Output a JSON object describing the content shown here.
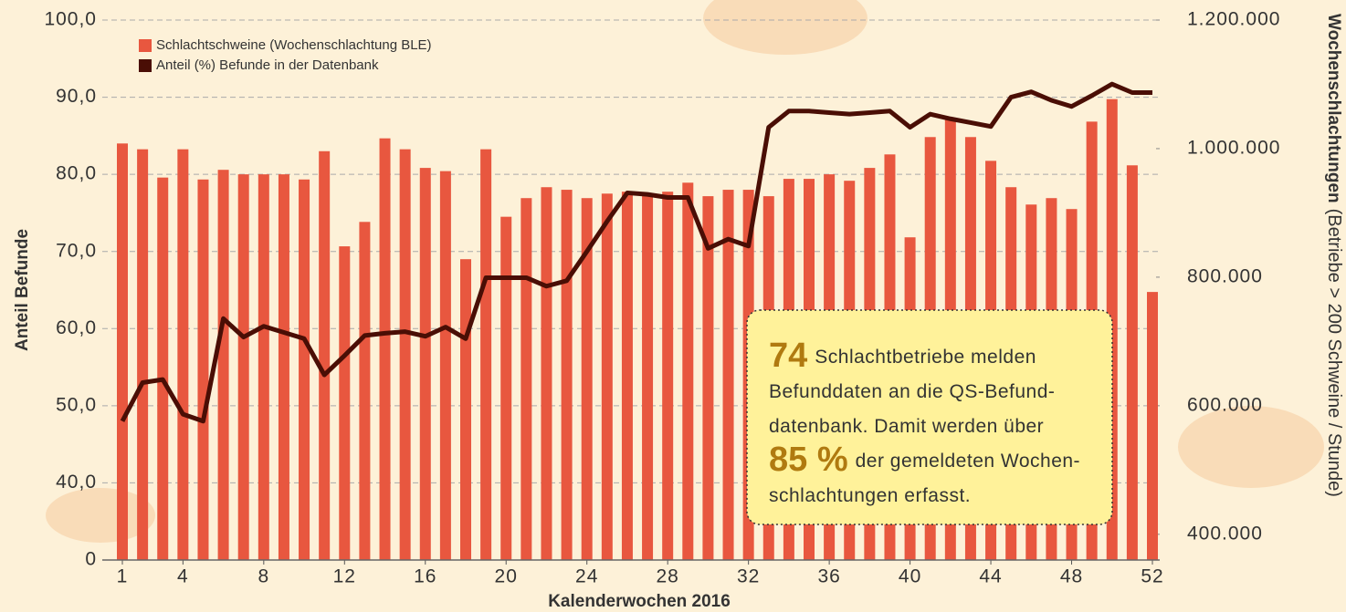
{
  "chart_data": {
    "type": "bar_line",
    "x_label": "Kalenderwochen 2016",
    "y_label": "Anteil Befunde",
    "y2_label": "Wochenschlachtungen",
    "y2_label_note": "(Betriebe > 200 Schweine / Stunde)",
    "x": [
      1,
      2,
      3,
      4,
      5,
      6,
      7,
      8,
      9,
      10,
      11,
      12,
      13,
      14,
      15,
      16,
      17,
      18,
      19,
      20,
      21,
      22,
      23,
      24,
      25,
      26,
      27,
      28,
      29,
      30,
      31,
      32,
      33,
      34,
      35,
      36,
      37,
      38,
      39,
      40,
      41,
      42,
      43,
      44,
      45,
      46,
      47,
      48,
      49,
      50,
      51,
      52
    ],
    "xlim": [
      1,
      52
    ],
    "xticks": [
      1,
      4,
      8,
      12,
      16,
      20,
      24,
      28,
      32,
      36,
      40,
      44,
      48,
      52
    ],
    "ylim": [
      30,
      100
    ],
    "y_break": true,
    "yticks": [
      0,
      {
        "value": 40,
        "label": "40,0"
      },
      {
        "value": 50,
        "label": "50,0"
      },
      {
        "value": 60,
        "label": "60,0"
      },
      {
        "value": 70,
        "label": "70,0"
      },
      {
        "value": 80,
        "label": "80,0"
      },
      {
        "value": 90,
        "label": "90,0"
      },
      {
        "value": 100,
        "label": "100,0"
      }
    ],
    "y2lim": [
      360000,
      1200000
    ],
    "y2ticks": [
      {
        "value": 400000,
        "label": "400.000"
      },
      {
        "value": 600000,
        "label": "600.000"
      },
      {
        "value": 800000,
        "label": "800.000"
      },
      {
        "value": 1000000,
        "label": "1.000.000"
      },
      {
        "value": 1200000,
        "label": "1.200.000"
      }
    ],
    "grid": true,
    "legend": "top-left",
    "series": [
      {
        "name": "Schlachtschweine (Wochenschlachtung BLE)",
        "color": "#e8573f",
        "kind": "bar",
        "axis": "y2",
        "values": [
          1008000,
          999000,
          955000,
          999000,
          952000,
          967000,
          960000,
          960000,
          960000,
          952000,
          996000,
          848000,
          886000,
          1016000,
          999000,
          970000,
          965000,
          828000,
          999000,
          894000,
          923000,
          940000,
          936000,
          923000,
          930000,
          933000,
          930000,
          933000,
          947000,
          926000,
          936000,
          936000,
          926000,
          953000,
          953000,
          960000,
          950000,
          970000,
          991000,
          862000,
          1018000,
          1045000,
          1018000,
          981000,
          940000,
          913000,
          923000,
          906000,
          1042000,
          1077000,
          974000,
          777000
        ]
      },
      {
        "name": "Anteil (%) Befunde in der Datenbank",
        "color": "#4a0e05",
        "kind": "line",
        "values": [
          48.0,
          53.0,
          53.4,
          48.9,
          48.0,
          61.3,
          58.9,
          60.3,
          59.5,
          58.7,
          54.0,
          56.5,
          59.1,
          59.4,
          59.6,
          59.0,
          60.2,
          58.7,
          66.6,
          66.6,
          66.6,
          65.5,
          66.2,
          70.0,
          73.9,
          77.6,
          77.4,
          77.0,
          77.0,
          70.4,
          71.6,
          70.7,
          86.1,
          88.2,
          88.2,
          88.0,
          87.8,
          88.0,
          88.2,
          86.1,
          87.8,
          87.2,
          86.7,
          86.2,
          90.0,
          90.7,
          89.6,
          88.8,
          90.2,
          91.7,
          90.6,
          90.6
        ]
      }
    ],
    "annotation": {
      "lines": [
        [
          {
            "text": "74",
            "big": true
          },
          {
            "text": "Schlachtbetriebe melden"
          }
        ],
        [
          {
            "text": "Befunddaten an die QS-Befund-"
          }
        ],
        [
          {
            "text": "datenbank. Damit werden über"
          }
        ],
        [
          {
            "text": "85 %",
            "big": true
          },
          {
            "text": "der gemeldeten Wochen-"
          }
        ],
        [
          {
            "text": "schlachtungen erfasst."
          }
        ]
      ]
    }
  }
}
